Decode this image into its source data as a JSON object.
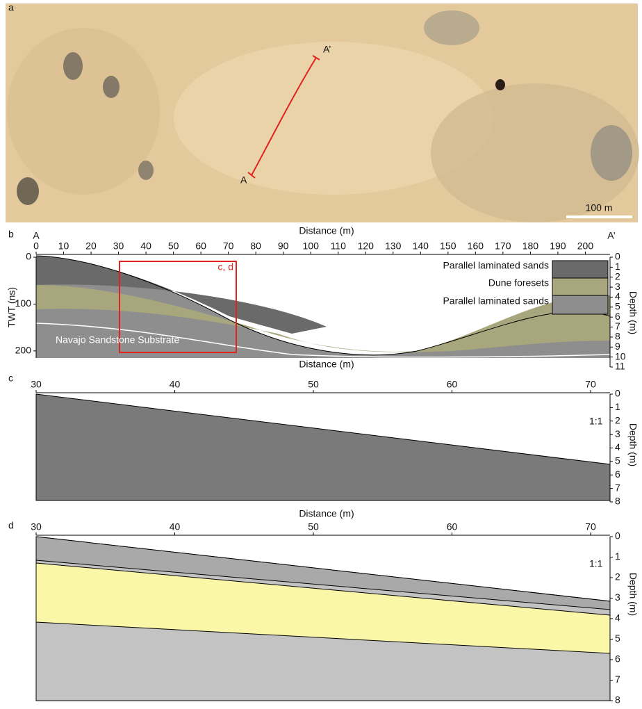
{
  "panel_a": {
    "label": "a",
    "points": [
      "A",
      "A’"
    ],
    "scale": "100 m"
  },
  "panel_b": {
    "label": "b",
    "ends": [
      "A",
      "A’"
    ],
    "xlabel": "Distance (m)",
    "xticks": [
      0,
      10,
      20,
      30,
      40,
      50,
      60,
      70,
      80,
      90,
      100,
      110,
      120,
      130,
      140,
      150,
      160,
      170,
      180,
      190,
      200
    ],
    "xlim": [
      0,
      209
    ],
    "ylabel": "TWT (ns)",
    "yticks": [
      0,
      100,
      200
    ],
    "ylim": [
      0,
      215
    ],
    "y2label": "Depth (m)",
    "y2ticks": [
      0,
      1,
      2,
      3,
      4,
      5,
      6,
      7,
      8,
      9,
      10,
      11
    ],
    "y2lim": [
      0,
      11
    ],
    "legend": [
      "Parallel laminated sands",
      "Dune foresets",
      "Parallel laminated sands"
    ],
    "annotation": "Navajo Sandstone Substrate",
    "box_label": "c, d"
  },
  "panel_c": {
    "label": "c",
    "xlabel": "Distance (m)",
    "xticks": [
      30,
      40,
      50,
      60,
      70
    ],
    "xlim": [
      30,
      71.4
    ],
    "y2label": "Depth (m)",
    "y2ticks": [
      0,
      1,
      2,
      3,
      4,
      5,
      6,
      7,
      8
    ],
    "y2lim": [
      0,
      8
    ],
    "scale_note": "1:1"
  },
  "panel_d": {
    "label": "d",
    "xlabel": "Distance (m)",
    "xticks": [
      30,
      40,
      50,
      60,
      70
    ],
    "xlim": [
      30,
      71.4
    ],
    "y2label": "Depth (m)",
    "y2ticks": [
      0,
      1,
      2,
      3,
      4,
      5,
      6,
      7,
      8
    ],
    "y2lim": [
      0,
      8
    ],
    "scale_note": "1:1"
  }
}
